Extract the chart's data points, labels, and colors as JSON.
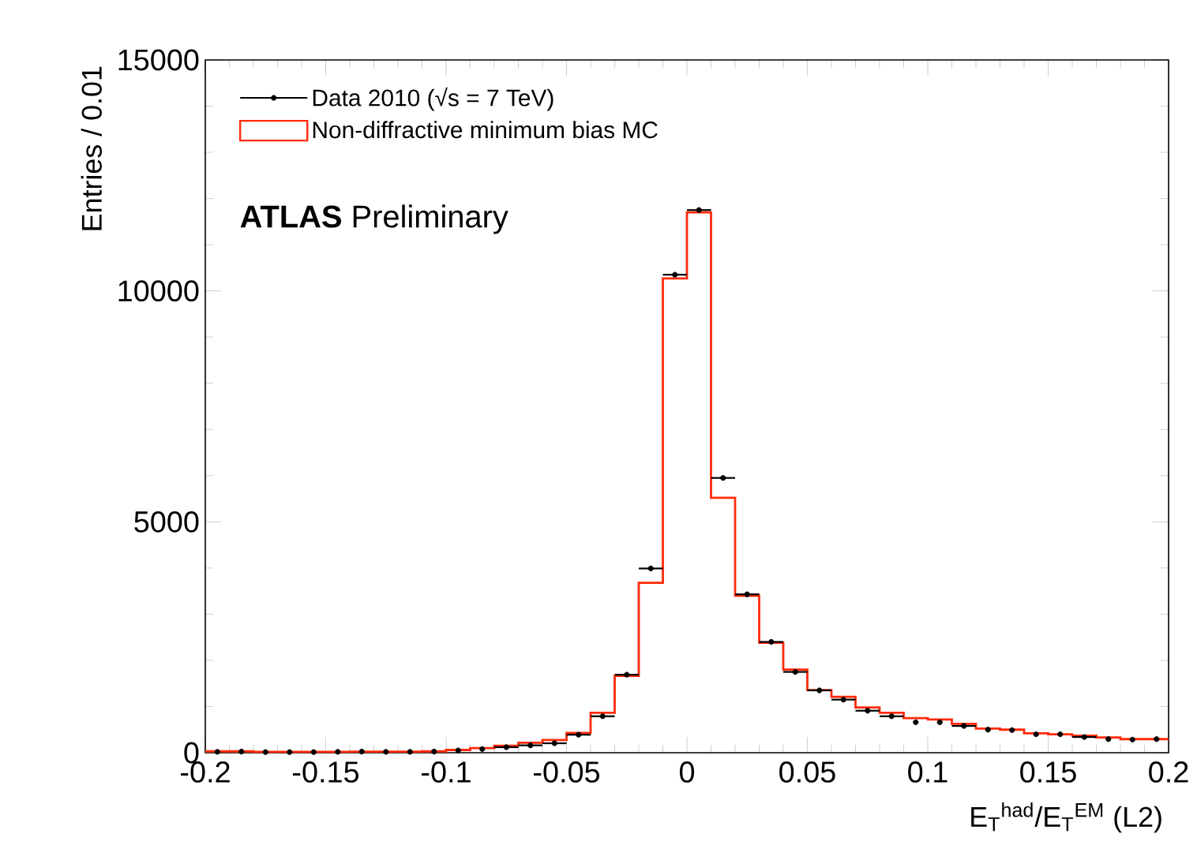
{
  "chart_data": {
    "type": "histogram",
    "xlabel": "E$_{T}$$^{had}$/E$_{T}$$^{EM}$ (L2)",
    "ylabel": "Entries / 0.01",
    "annotations": [
      "**ATLAS** Preliminary"
    ],
    "xlim": [
      -0.2,
      0.2
    ],
    "ylim": [
      0,
      15000
    ],
    "xticks": [
      -0.2,
      -0.15,
      -0.1,
      -0.05,
      0,
      0.05,
      0.1,
      0.15,
      0.2
    ],
    "yticks": [
      0,
      5000,
      10000,
      15000
    ],
    "grid": false,
    "legend": "top left",
    "bins": [
      -0.2,
      -0.19,
      -0.18,
      -0.17,
      -0.16,
      -0.15,
      -0.14,
      -0.13,
      -0.12,
      -0.11,
      -0.1,
      -0.09,
      -0.08,
      -0.07,
      -0.06,
      -0.05,
      -0.04,
      -0.03,
      -0.02,
      -0.01,
      0,
      0.01,
      0.02,
      0.03,
      0.04,
      0.05,
      0.06,
      0.07,
      0.08,
      0.09,
      0.1,
      0.11,
      0.12,
      0.13,
      0.14,
      0.15,
      0.16,
      0.17,
      0.18,
      0.19,
      0.2
    ],
    "series": [
      {
        "name": "Data 2010 (√s = 7 TeV)",
        "type": "scatter",
        "color": "#000000",
        "marker": "circle",
        "x": [
          -0.195,
          -0.185,
          -0.175,
          -0.165,
          -0.155,
          -0.145,
          -0.135,
          -0.125,
          -0.115,
          -0.105,
          -0.095,
          -0.085,
          -0.075,
          -0.065,
          -0.055,
          -0.045,
          -0.035,
          -0.025,
          -0.015,
          -0.005,
          0.005,
          0.015,
          0.025,
          0.035,
          0.045,
          0.055,
          0.065,
          0.075,
          0.085,
          0.095,
          0.105,
          0.115,
          0.125,
          0.135,
          0.145,
          0.155,
          0.165,
          0.175,
          0.185,
          0.195
        ],
        "values": [
          20,
          25,
          15,
          15,
          15,
          20,
          25,
          20,
          20,
          25,
          50,
          80,
          120,
          160,
          205,
          390,
          790,
          1690,
          3990,
          10350,
          11750,
          5950,
          3430,
          2400,
          1750,
          1350,
          1150,
          910,
          790,
          660,
          660,
          580,
          500,
          490,
          400,
          400,
          340,
          295,
          285,
          295
        ],
        "xerrors": [
          null,
          null,
          null,
          null,
          null,
          null,
          null,
          null,
          null,
          null,
          null,
          null,
          0.005,
          0.005,
          0.005,
          0.005,
          0.005,
          0.005,
          0.005,
          0.005,
          0.005,
          0.005,
          0.005,
          0.005,
          0.005,
          0.005,
          0.005,
          0.005,
          0.005,
          null,
          null,
          0.005,
          null,
          null,
          null,
          null,
          0.005,
          null,
          null,
          null
        ]
      },
      {
        "name": "Non-diffractive minimum bias MC",
        "color": "#ff2a0a",
        "values": [
          30,
          30,
          20,
          20,
          20,
          20,
          25,
          25,
          25,
          30,
          60,
          100,
          150,
          215,
          275,
          430,
          865,
          1665,
          3680,
          10270,
          11700,
          5520,
          3400,
          2380,
          1800,
          1357,
          1210,
          980,
          866,
          750,
          718,
          626,
          524,
          500,
          420,
          400,
          370,
          330,
          295,
          295
        ]
      }
    ]
  }
}
